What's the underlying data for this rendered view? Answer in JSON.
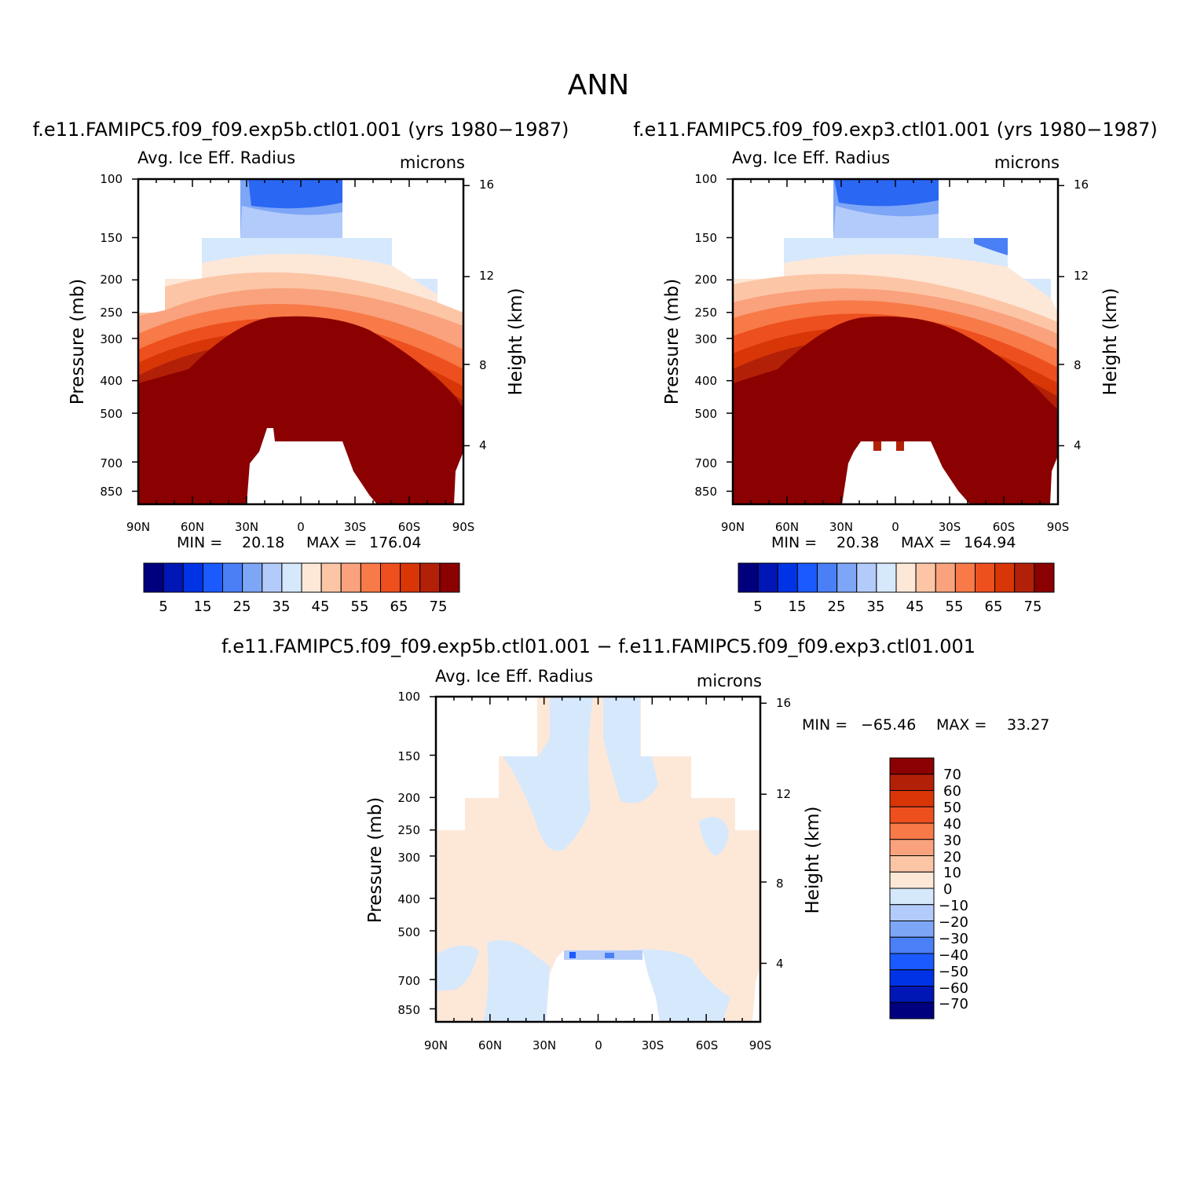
{
  "figure": {
    "title": "ANN"
  },
  "chart_data": [
    {
      "type": "contour",
      "id": "panel1",
      "case_title": "f.e11.FAMIPC5.f09_f09.exp5b.ctl01.001 (yrs 1980−1987)",
      "title": "Avg. Ice Eff. Radius",
      "units": "microns",
      "ylabel": "Pressure (mb)",
      "y2label": "Height (km)",
      "xticks": [
        "90N",
        "60N",
        "30N",
        "0",
        "30S",
        "60S",
        "90S"
      ],
      "yticks": [
        "100",
        "150",
        "200",
        "250",
        "300",
        "400",
        "500",
        "700",
        "850"
      ],
      "y2ticks": [
        "16",
        "12",
        "8",
        "4"
      ],
      "min_label": "MIN =",
      "min": "20.18",
      "max_label": "MAX =",
      "max": "176.04",
      "colorbar_labels": [
        "5",
        "15",
        "25",
        "35",
        "45",
        "55",
        "65",
        "75"
      ],
      "colorbar_colors": [
        "#00007f",
        "#0016b5",
        "#0033e6",
        "#1a5aff",
        "#4a7ff5",
        "#7ea6f7",
        "#b3cbfa",
        "#d6e8fc",
        "#fde8d8",
        "#fcc6a6",
        "#f9a27d",
        "#f77a48",
        "#ee4f1e",
        "#d93607",
        "#b32008",
        "#8b0000"
      ],
      "contour_bands": [
        {
          "level": "<5",
          "color": "#2a67f3"
        },
        {
          "level": "5-35",
          "color": "#7ea6f7"
        },
        {
          "level": "35-40",
          "color": "#b3cbfa"
        },
        {
          "level": "40-45",
          "color": "#d6e8fc"
        },
        {
          "level": "45-50",
          "color": "#fde8d8"
        },
        {
          "level": "50-55",
          "color": "#fcc6a6"
        },
        {
          "level": "55-60",
          "color": "#f9a27d"
        },
        {
          "level": "60-65",
          "color": "#f77a48"
        },
        {
          "level": "65-70",
          "color": "#ee4f1e"
        },
        {
          "level": "70-75",
          "color": "#d93607"
        },
        {
          "level": "75-80",
          "color": "#b32008"
        },
        {
          "level": ">80",
          "color": "#8b0000"
        }
      ]
    },
    {
      "type": "contour",
      "id": "panel2",
      "case_title": "f.e11.FAMIPC5.f09_f09.exp3.ctl01.001 (yrs 1980−1987)",
      "title": "Avg. Ice Eff. Radius",
      "units": "microns",
      "ylabel": "Pressure (mb)",
      "y2label": "Height (km)",
      "xticks": [
        "90N",
        "60N",
        "30N",
        "0",
        "30S",
        "60S",
        "90S"
      ],
      "yticks": [
        "100",
        "150",
        "200",
        "250",
        "300",
        "400",
        "500",
        "700",
        "850"
      ],
      "y2ticks": [
        "16",
        "12",
        "8",
        "4"
      ],
      "min_label": "MIN =",
      "min": "20.38",
      "max_label": "MAX =",
      "max": "164.94",
      "colorbar_labels": [
        "5",
        "15",
        "25",
        "35",
        "45",
        "55",
        "65",
        "75"
      ],
      "colorbar_colors": [
        "#00007f",
        "#0016b5",
        "#0033e6",
        "#1a5aff",
        "#4a7ff5",
        "#7ea6f7",
        "#b3cbfa",
        "#d6e8fc",
        "#fde8d8",
        "#fcc6a6",
        "#f9a27d",
        "#f77a48",
        "#ee4f1e",
        "#d93607",
        "#b32008",
        "#8b0000"
      ]
    },
    {
      "type": "contour",
      "id": "panel3",
      "case_title": "f.e11.FAMIPC5.f09_f09.exp5b.ctl01.001 − f.e11.FAMIPC5.f09_f09.exp3.ctl01.001",
      "title": "Avg. Ice Eff. Radius",
      "units": "microns",
      "ylabel": "Pressure (mb)",
      "y2label": "Height (km)",
      "xticks": [
        "90N",
        "60N",
        "30N",
        "0",
        "30S",
        "60S",
        "90S"
      ],
      "yticks": [
        "100",
        "150",
        "200",
        "250",
        "300",
        "400",
        "500",
        "700",
        "850"
      ],
      "y2ticks": [
        "16",
        "12",
        "8",
        "4"
      ],
      "min_label": "MIN =",
      "min": "−65.46",
      "max_label": "MAX =",
      "max": "33.27",
      "colorbar_labels": [
        "70",
        "60",
        "50",
        "40",
        "30",
        "20",
        "10",
        "0",
        "−10",
        "−20",
        "−30",
        "−40",
        "−50",
        "−60",
        "−70"
      ],
      "colorbar_colors": [
        "#8b0000",
        "#b32008",
        "#d93607",
        "#ee4f1e",
        "#f77a48",
        "#f9a27d",
        "#fcc6a6",
        "#fde8d8",
        "#d6e8fc",
        "#b3cbfa",
        "#7ea6f7",
        "#4a7ff5",
        "#1a5aff",
        "#0033e6",
        "#0016b5",
        "#00007f"
      ]
    }
  ]
}
